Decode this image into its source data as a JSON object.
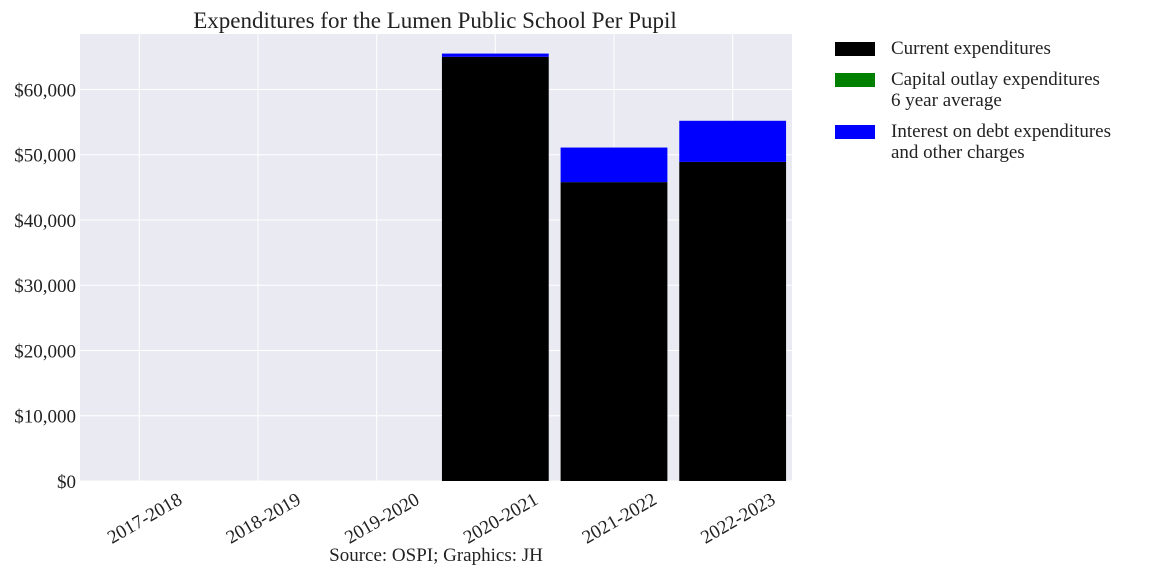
{
  "chart_data": {
    "type": "bar",
    "stacked": true,
    "title": "Expenditures for the Lumen Public School Per Pupil",
    "footer": "Source: OSPI; Graphics: JH",
    "categories": [
      "2017-2018",
      "2018-2019",
      "2019-2020",
      "2020-2021",
      "2021-2022",
      "2022-2023"
    ],
    "series": [
      {
        "name": "Current expenditures",
        "color": "#000000",
        "values": [
          0,
          0,
          0,
          65000,
          45800,
          48900
        ]
      },
      {
        "name": "Capital outlay expenditures\n6 year average",
        "color": "#008000",
        "values": [
          0,
          0,
          0,
          0,
          0,
          0
        ]
      },
      {
        "name": "Interest on debt expenditures\nand other charges",
        "color": "#0000ff",
        "values": [
          0,
          0,
          0,
          500,
          5300,
          6300
        ]
      }
    ],
    "ylim": [
      0,
      68500
    ],
    "yticks": [
      0,
      10000,
      20000,
      30000,
      40000,
      50000,
      60000
    ],
    "ytick_labels": [
      "$0",
      "$10,000",
      "$20,000",
      "$30,000",
      "$40,000",
      "$50,000",
      "$60,000"
    ],
    "grid": true,
    "legend": "outside-right"
  }
}
